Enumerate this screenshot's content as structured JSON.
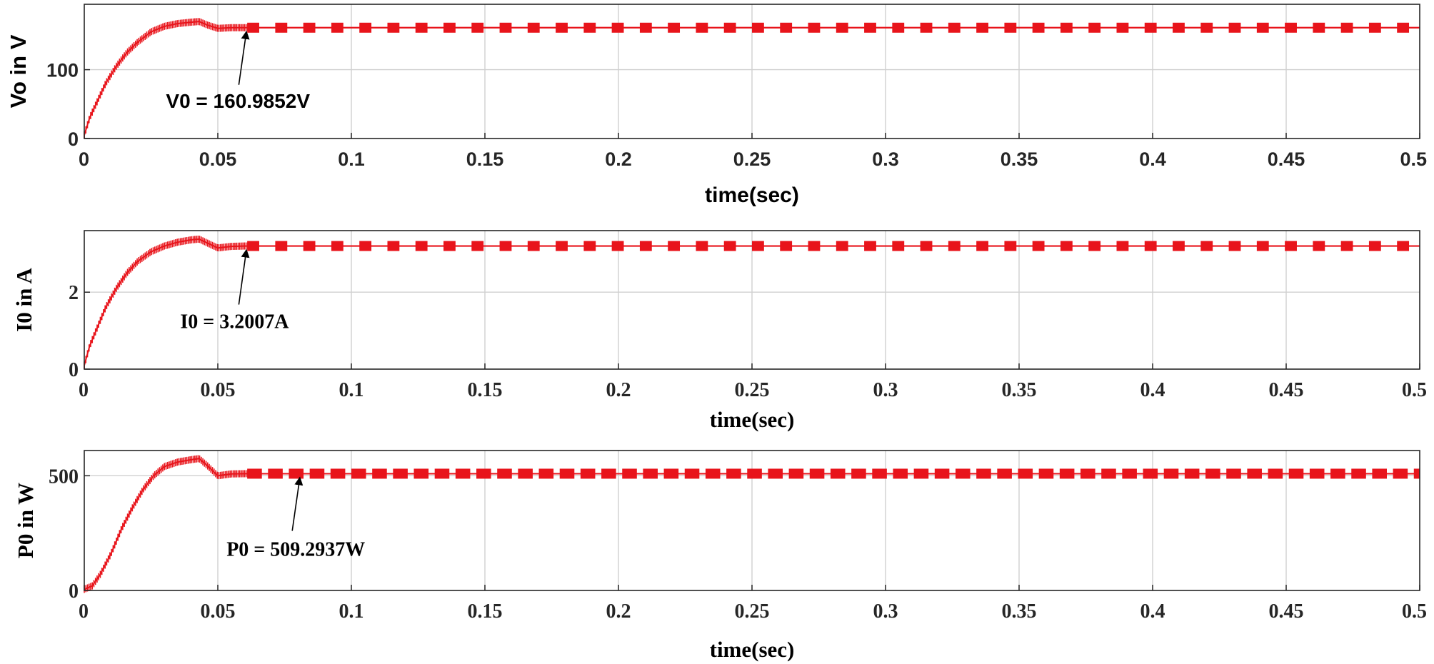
{
  "chart_data": [
    {
      "type": "line",
      "xlabel": "time(sec)",
      "ylabel": "Vo in V",
      "xlim": [
        0,
        0.5
      ],
      "ylim": [
        0,
        195
      ],
      "xticks": [
        "0",
        "0.05",
        "0.1",
        "0.15",
        "0.2",
        "0.25",
        "0.3",
        "0.35",
        "0.4",
        "0.45",
        "0.5"
      ],
      "yticks": [
        "0",
        "100"
      ],
      "grid": true,
      "series_color": "#e8141b",
      "series": [
        {
          "x": [
            0,
            0.002,
            0.005,
            0.008,
            0.012,
            0.016,
            0.02,
            0.025,
            0.03,
            0.035,
            0.04,
            0.043,
            0.046,
            0.05,
            0.055,
            0.06,
            0.1,
            0.2,
            0.3,
            0.4,
            0.5
          ],
          "y": [
            5,
            30,
            55,
            80,
            105,
            125,
            140,
            155,
            163,
            167,
            169,
            170,
            165,
            160,
            161,
            161,
            161,
            161,
            161,
            161,
            161
          ]
        }
      ],
      "annotation": {
        "text": "V0 = 160.9852V",
        "x": 0.06,
        "y": 161
      }
    },
    {
      "type": "line",
      "xlabel": "time(sec)",
      "ylabel": "I0 in A",
      "xlim": [
        0,
        0.5
      ],
      "ylim": [
        0,
        3.6
      ],
      "xticks": [
        "0",
        "0.05",
        "0.1",
        "0.15",
        "0.2",
        "0.25",
        "0.3",
        "0.35",
        "0.4",
        "0.45",
        "0.5"
      ],
      "yticks": [
        "0",
        "2"
      ],
      "grid": true,
      "series_color": "#e8141b",
      "series": [
        {
          "x": [
            0,
            0.002,
            0.005,
            0.008,
            0.012,
            0.016,
            0.02,
            0.025,
            0.03,
            0.035,
            0.04,
            0.043,
            0.046,
            0.05,
            0.055,
            0.06,
            0.1,
            0.2,
            0.3,
            0.4,
            0.5
          ],
          "y": [
            0.1,
            0.6,
            1.1,
            1.6,
            2.1,
            2.5,
            2.8,
            3.05,
            3.2,
            3.3,
            3.36,
            3.38,
            3.28,
            3.15,
            3.19,
            3.2,
            3.2,
            3.2,
            3.2,
            3.2,
            3.2
          ]
        }
      ],
      "annotation": {
        "text": "I0 = 3.2007A",
        "x": 0.06,
        "y": 3.2
      }
    },
    {
      "type": "line",
      "xlabel": "time(sec)",
      "ylabel": "P0 in W",
      "xlim": [
        0,
        0.5
      ],
      "ylim": [
        0,
        610
      ],
      "xticks": [
        "0",
        "0.05",
        "0.1",
        "0.15",
        "0.2",
        "0.25",
        "0.3",
        "0.35",
        "0.4",
        "0.45",
        "0.5"
      ],
      "yticks": [
        "0",
        "500"
      ],
      "grid": true,
      "series_color": "#e8141b",
      "series": [
        {
          "x": [
            0,
            0.003,
            0.006,
            0.01,
            0.014,
            0.018,
            0.022,
            0.026,
            0.03,
            0.035,
            0.04,
            0.043,
            0.046,
            0.05,
            0.055,
            0.06,
            0.1,
            0.2,
            0.3,
            0.4,
            0.5
          ],
          "y": [
            5,
            20,
            70,
            160,
            270,
            360,
            440,
            500,
            540,
            560,
            570,
            575,
            545,
            500,
            508,
            509,
            509,
            509,
            509,
            509,
            509
          ]
        }
      ],
      "annotation": {
        "text": "P0 = 509.2937W",
        "x": 0.08,
        "y": 509
      }
    }
  ]
}
